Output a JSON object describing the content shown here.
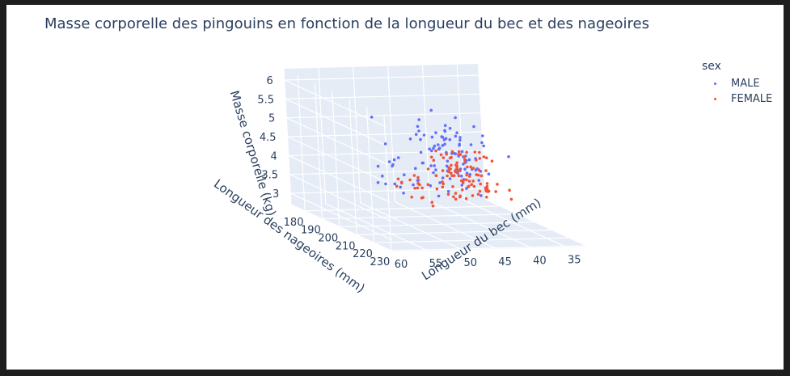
{
  "chart_data": {
    "type": "scatter3d",
    "title": "Masse corporelle des pingouins en fonction de la longueur du bec et des nageoires",
    "xlabel": "Longueur du bec (mm)",
    "ylabel": "Longueur des nageoires (mm)",
    "zlabel": "Masse corporelle (kg)",
    "xlim": [
      32,
      60
    ],
    "ylim": [
      172,
      231
    ],
    "zlim": [
      2.7,
      6.3
    ],
    "x_ticks": [
      "35",
      "40",
      "45",
      "50",
      "55",
      "60"
    ],
    "y_ticks": [
      "180",
      "190",
      "200",
      "210",
      "220",
      "230"
    ],
    "z_ticks": [
      "3",
      "3.5",
      "4",
      "4.5",
      "5",
      "5.5",
      "6"
    ],
    "legend_title": "sex",
    "legend_position": "top-right",
    "series": [
      {
        "name": "MALE",
        "color": "#636efa",
        "points": [
          [
            39.1,
            181,
            3.75
          ],
          [
            39.3,
            190,
            3.65
          ],
          [
            39.2,
            195,
            4.675
          ],
          [
            38.6,
            191,
            3.8
          ],
          [
            34.6,
            198,
            4.4
          ],
          [
            42.5,
            197,
            4.5
          ],
          [
            46.0,
            194,
            4.2
          ],
          [
            37.7,
            180,
            3.6
          ],
          [
            40.6,
            183,
            3.55
          ],
          [
            41.3,
            194,
            3.95
          ],
          [
            41.1,
            182,
            3.05
          ],
          [
            39.2,
            190,
            4.25
          ],
          [
            37.9,
            194,
            3.3
          ],
          [
            38.8,
            189,
            3.9
          ],
          [
            40.5,
            193,
            3.95
          ],
          [
            41.1,
            188,
            3.3
          ],
          [
            42.2,
            193,
            3.95
          ],
          [
            40.6,
            197,
            4.25
          ],
          [
            41.5,
            191,
            3.7
          ],
          [
            40.8,
            195,
            3.85
          ],
          [
            43.2,
            197,
            4.3
          ],
          [
            39.7,
            193,
            3.475
          ],
          [
            41.8,
            198,
            4.45
          ],
          [
            40.9,
            187,
            3.95
          ],
          [
            37.8,
            186,
            3.725
          ],
          [
            39.0,
            194,
            4.0
          ],
          [
            45.8,
            199,
            4.05
          ],
          [
            42.1,
            200,
            4.15
          ],
          [
            39.6,
            190,
            3.5
          ],
          [
            44.1,
            196,
            4.6
          ],
          [
            38.7,
            195,
            4.0
          ],
          [
            42.8,
            195,
            4.0
          ],
          [
            45.2,
            198,
            4.1
          ],
          [
            40.3,
            196,
            4.4
          ],
          [
            41.4,
            207,
            4.3
          ],
          [
            43.0,
            191,
            3.6
          ],
          [
            46.1,
            194,
            4.2
          ],
          [
            50.0,
            196,
            4.4
          ],
          [
            51.3,
            193,
            3.65
          ],
          [
            52.7,
            197,
            3.95
          ],
          [
            50.5,
            200,
            3.55
          ],
          [
            49.5,
            190,
            4.05
          ],
          [
            50.6,
            195,
            4.2
          ],
          [
            51.9,
            205,
            3.95
          ],
          [
            52.8,
            205,
            4.55
          ],
          [
            54.2,
            201,
            4.3
          ],
          [
            51.0,
            203,
            4.1
          ],
          [
            49.7,
            195,
            3.6
          ],
          [
            52.0,
            197,
            4.8
          ],
          [
            53.5,
            205,
            4.5
          ],
          [
            50.8,
            210,
            4.1
          ],
          [
            49.0,
            210,
            3.95
          ],
          [
            52.2,
            213,
            4.05
          ],
          [
            50.3,
            207,
            4.35
          ],
          [
            51.7,
            200,
            3.8
          ],
          [
            48.5,
            201,
            3.9
          ],
          [
            50.7,
            220,
            4.7
          ],
          [
            55.8,
            207,
            4.0
          ],
          [
            45.4,
            211,
            4.8
          ],
          [
            46.7,
            219,
            5.2
          ],
          [
            50.0,
            219,
            5.55
          ],
          [
            48.7,
            219,
            5.6
          ],
          [
            50.0,
            220,
            5.25
          ],
          [
            47.6,
            215,
            5.3
          ],
          [
            46.7,
            217,
            5.4
          ],
          [
            46.1,
            230,
            5.5
          ],
          [
            50.0,
            224,
            5.35
          ],
          [
            48.4,
            221,
            5.7
          ],
          [
            49.3,
            222,
            5.8
          ],
          [
            49.2,
            230,
            5.65
          ],
          [
            48.8,
            218,
            5.4
          ],
          [
            52.5,
            220,
            5.4
          ],
          [
            50.4,
            224,
            5.55
          ],
          [
            49.5,
            215,
            5.05
          ],
          [
            51.1,
            229,
            5.8
          ],
          [
            55.9,
            228,
            5.6
          ],
          [
            59.6,
            221,
            6.05
          ],
          [
            45.2,
            222,
            5.75
          ],
          [
            55.1,
            230,
            5.85
          ],
          [
            54.3,
            225,
            5.65
          ],
          [
            48.1,
            210,
            5.0
          ],
          [
            53.4,
            226,
            5.65
          ],
          [
            50.1,
            225,
            5.15
          ],
          [
            49.8,
            228,
            5.2
          ],
          [
            51.5,
            230,
            5.6
          ],
          [
            55.0,
            229,
            5.95
          ],
          [
            46.2,
            231,
            5.7
          ],
          [
            49.6,
            221,
            5.25
          ],
          [
            50.8,
            218,
            5.1
          ],
          [
            52.2,
            226,
            6.3
          ],
          [
            49.1,
            229,
            5.45
          ],
          [
            47.3,
            222,
            5.4
          ],
          [
            52.8,
            221,
            5.95
          ],
          [
            45.5,
            213,
            5.4
          ],
          [
            48.6,
            215,
            5.05
          ],
          [
            50.5,
            218,
            5.05
          ],
          [
            51.3,
            222,
            5.5
          ],
          [
            50.7,
            230,
            5.6
          ],
          [
            47.8,
            222,
            6.0
          ],
          [
            53.5,
            224,
            5.15
          ],
          [
            44.9,
            213,
            4.9
          ],
          [
            43.5,
            215,
            4.75
          ],
          [
            49.0,
            211,
            4.5
          ],
          [
            45.8,
            213,
            4.45
          ],
          [
            36.4,
            187,
            3.55
          ],
          [
            35.9,
            191,
            3.8
          ],
          [
            38.1,
            198,
            4.7
          ],
          [
            38.3,
            188,
            4.1
          ],
          [
            40.7,
            187,
            3.8
          ],
          [
            37.3,
            192,
            3.9
          ],
          [
            44.1,
            210,
            4.5
          ],
          [
            39.8,
            196,
            4.3
          ]
        ]
      },
      {
        "name": "FEMALE",
        "color": "#ef553b",
        "points": [
          [
            39.5,
            186,
            3.8
          ],
          [
            40.3,
            195,
            3.25
          ],
          [
            36.7,
            193,
            3.45
          ],
          [
            38.9,
            181,
            3.625
          ],
          [
            39.5,
            178,
            3.2
          ],
          [
            37.9,
            172,
            3.15
          ],
          [
            39.6,
            186,
            3.2
          ],
          [
            36.7,
            187,
            3.7
          ],
          [
            38.2,
            185,
            3.45
          ],
          [
            34.5,
            190,
            3.5
          ],
          [
            40.2,
            187,
            3.4
          ],
          [
            36.4,
            184,
            3.325
          ],
          [
            35.7,
            188,
            3.325
          ],
          [
            35.5,
            193,
            3.375
          ],
          [
            37.2,
            194,
            3.5
          ],
          [
            38.7,
            190,
            3.45
          ],
          [
            37.6,
            196,
            3.3
          ],
          [
            36.9,
            194,
            3.4
          ],
          [
            36.0,
            190,
            3.45
          ],
          [
            39.6,
            191,
            3.65
          ],
          [
            36.5,
            182,
            3.55
          ],
          [
            38.1,
            187,
            3.7
          ],
          [
            35.3,
            187,
            3.8
          ],
          [
            36.2,
            191,
            3.55
          ],
          [
            41.4,
            196,
            3.35
          ],
          [
            42.0,
            200,
            3.6
          ],
          [
            40.9,
            190,
            3.2
          ],
          [
            37.8,
            181,
            3.55
          ],
          [
            37.3,
            191,
            3.35
          ],
          [
            40.2,
            190,
            3.95
          ],
          [
            35.7,
            202,
            3.6
          ],
          [
            38.9,
            187,
            3.55
          ],
          [
            32.1,
            188,
            3.05
          ],
          [
            37.7,
            198,
            3.5
          ],
          [
            37.9,
            187,
            3.4
          ],
          [
            38.5,
            190,
            3.6
          ],
          [
            39.0,
            186,
            3.1
          ],
          [
            46.5,
            192,
            3.5
          ],
          [
            45.4,
            188,
            3.525
          ],
          [
            45.2,
            198,
            3.95
          ],
          [
            46.1,
            178,
            3.25
          ],
          [
            46.9,
            195,
            3.65
          ],
          [
            42.4,
            190,
            3.6
          ],
          [
            47.5,
            199,
            3.4
          ],
          [
            47.6,
            195,
            3.9
          ],
          [
            45.5,
            196,
            3.2
          ],
          [
            46.4,
            190,
            3.45
          ],
          [
            42.5,
            187,
            3.35
          ],
          [
            45.6,
            191,
            3.475
          ],
          [
            40.9,
            187,
            3.2
          ],
          [
            42.5,
            187,
            3.7
          ],
          [
            43.5,
            202,
            3.4
          ],
          [
            50.2,
            198,
            3.775
          ],
          [
            46.6,
            193,
            3.8
          ],
          [
            51.4,
            201,
            3.95
          ],
          [
            46.2,
            187,
            3.15
          ],
          [
            45.9,
            190,
            3.575
          ],
          [
            43.2,
            187,
            2.9
          ],
          [
            46.8,
            189,
            3.65
          ],
          [
            45.7,
            195,
            3.65
          ],
          [
            46.7,
            195,
            3.3
          ],
          [
            43.3,
            209,
            4.4
          ],
          [
            40.9,
            214,
            4.65
          ],
          [
            46.5,
            210,
            4.2
          ],
          [
            45.4,
            211,
            4.5
          ],
          [
            42.9,
            215,
            4.75
          ],
          [
            46.1,
            211,
            4.5
          ],
          [
            44.5,
            214,
            4.9
          ],
          [
            48.2,
            214,
            4.85
          ],
          [
            45.1,
            215,
            4.8
          ],
          [
            45.3,
            210,
            4.3
          ],
          [
            45.5,
            210,
            4.2
          ],
          [
            46.2,
            209,
            4.75
          ],
          [
            46.5,
            213,
            4.75
          ],
          [
            45.2,
            212,
            4.8
          ],
          [
            49.1,
            212,
            4.75
          ],
          [
            47.2,
            214,
            4.4
          ],
          [
            46.4,
            216,
            4.45
          ],
          [
            44.9,
            212,
            4.8
          ],
          [
            48.7,
            208,
            4.35
          ],
          [
            42.6,
            213,
            4.4
          ],
          [
            43.5,
            220,
            4.9
          ],
          [
            47.7,
            216,
            4.55
          ],
          [
            45.5,
            212,
            4.5
          ],
          [
            46.2,
            215,
            4.65
          ],
          [
            45.1,
            212,
            4.875
          ],
          [
            41.7,
            210,
            4.8
          ],
          [
            50.5,
            224,
            4.65
          ],
          [
            43.4,
            213,
            4.45
          ],
          [
            42.8,
            209,
            4.4
          ],
          [
            44.0,
            220,
            4.4
          ],
          [
            48.4,
            220,
            4.6
          ],
          [
            43.3,
            214,
            4.9
          ],
          [
            46.8,
            215,
            4.95
          ],
          [
            40.7,
            210,
            4.65
          ],
          [
            49.4,
            216,
            5.0
          ],
          [
            44.4,
            219,
            4.8
          ],
          [
            47.5,
            225,
            4.95
          ],
          [
            46.4,
            217,
            4.5
          ],
          [
            45.8,
            210,
            4.2
          ],
          [
            42.0,
            210,
            4.2
          ],
          [
            45.3,
            216,
            4.7
          ],
          [
            47.4,
            212,
            4.725
          ],
          [
            44.5,
            217,
            4.2
          ],
          [
            49.6,
            225,
            5.0
          ],
          [
            48.1,
            209,
            4.6
          ],
          [
            36.2,
            187,
            3.45
          ],
          [
            37.0,
            185,
            3.4
          ],
          [
            39.6,
            196,
            3.35
          ],
          [
            37.3,
            190,
            3.25
          ],
          [
            36.0,
            178,
            3.375
          ],
          [
            35.9,
            189,
            3.3
          ]
        ]
      }
    ]
  }
}
